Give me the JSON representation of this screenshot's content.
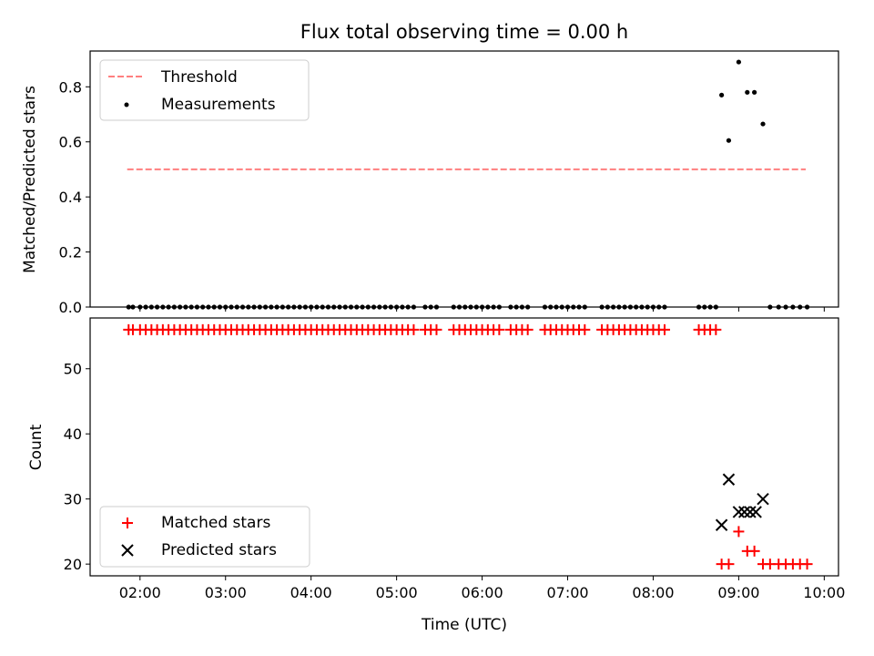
{
  "chart_data": [
    {
      "type": "scatter",
      "title": "Flux total observing time = 0.00 h",
      "xlabel": "",
      "ylabel": "Matched/Predicted stars",
      "xlim": [
        "01:25",
        "10:10"
      ],
      "ylim": [
        0,
        0.93
      ],
      "x_ticks": [
        "02:00",
        "03:00",
        "04:00",
        "05:00",
        "06:00",
        "07:00",
        "08:00",
        "09:00",
        "10:00"
      ],
      "y_ticks": [
        "0.0",
        "0.2",
        "0.4",
        "0.6",
        "0.8"
      ],
      "grid": false,
      "legend": "top-left",
      "series": [
        {
          "name": "Threshold",
          "style": "dashed-line",
          "color": "#ff7f7f",
          "x": [
            "01:51",
            "09:47"
          ],
          "y": [
            0.5,
            0.5
          ]
        },
        {
          "name": "Measurements",
          "style": "dot",
          "color": "#000000",
          "x": [
            "01:52",
            "01:55",
            "02:00",
            "02:04",
            "02:08",
            "02:12",
            "02:16",
            "02:20",
            "02:24",
            "02:28",
            "02:32",
            "02:36",
            "02:40",
            "02:44",
            "02:48",
            "02:52",
            "02:56",
            "03:00",
            "03:04",
            "03:08",
            "03:12",
            "03:16",
            "03:20",
            "03:24",
            "03:28",
            "03:32",
            "03:36",
            "03:40",
            "03:44",
            "03:48",
            "03:52",
            "03:56",
            "04:00",
            "04:04",
            "04:08",
            "04:12",
            "04:16",
            "04:20",
            "04:24",
            "04:28",
            "04:32",
            "04:36",
            "04:40",
            "04:44",
            "04:48",
            "04:52",
            "04:56",
            "05:00",
            "05:04",
            "05:08",
            "05:12",
            "05:20",
            "05:24",
            "05:28",
            "05:40",
            "05:44",
            "05:48",
            "05:52",
            "05:56",
            "06:00",
            "06:04",
            "06:08",
            "06:12",
            "06:20",
            "06:24",
            "06:28",
            "06:32",
            "06:44",
            "06:48",
            "06:52",
            "06:56",
            "07:00",
            "07:04",
            "07:08",
            "07:12",
            "07:24",
            "07:28",
            "07:32",
            "07:36",
            "07:40",
            "07:44",
            "07:48",
            "07:52",
            "07:56",
            "08:00",
            "08:04",
            "08:08",
            "08:32",
            "08:36",
            "08:40",
            "08:44",
            "08:48",
            "08:53",
            "09:00",
            "09:06",
            "09:11",
            "09:17",
            "09:22",
            "09:28",
            "09:33",
            "09:38",
            "09:43",
            "09:48"
          ],
          "y": [
            0,
            0,
            0,
            0,
            0,
            0,
            0,
            0,
            0,
            0,
            0,
            0,
            0,
            0,
            0,
            0,
            0,
            0,
            0,
            0,
            0,
            0,
            0,
            0,
            0,
            0,
            0,
            0,
            0,
            0,
            0,
            0,
            0,
            0,
            0,
            0,
            0,
            0,
            0,
            0,
            0,
            0,
            0,
            0,
            0,
            0,
            0,
            0,
            0,
            0,
            0,
            0,
            0,
            0,
            0,
            0,
            0,
            0,
            0,
            0,
            0,
            0,
            0,
            0,
            0,
            0,
            0,
            0,
            0,
            0,
            0,
            0,
            0,
            0,
            0,
            0,
            0,
            0,
            0,
            0,
            0,
            0,
            0,
            0,
            0,
            0,
            0,
            0,
            0,
            0,
            0,
            0.77,
            0.605,
            0.89,
            0.78,
            0.78,
            0.665,
            0,
            0,
            0,
            0,
            0,
            0
          ]
        }
      ]
    },
    {
      "type": "scatter",
      "title": "",
      "xlabel": "Time (UTC)",
      "ylabel": "Count",
      "xlim": [
        "01:25",
        "10:10"
      ],
      "ylim": [
        18.2,
        57.8
      ],
      "x_ticks": [
        "02:00",
        "03:00",
        "04:00",
        "05:00",
        "06:00",
        "07:00",
        "08:00",
        "09:00",
        "10:00"
      ],
      "y_ticks": [
        "20",
        "30",
        "40",
        "50"
      ],
      "grid": false,
      "legend": "bottom-left",
      "series": [
        {
          "name": "Matched stars",
          "style": "plus",
          "color": "#ff0000",
          "x": [
            "01:52",
            "01:55",
            "02:00",
            "02:04",
            "02:08",
            "02:12",
            "02:16",
            "02:20",
            "02:24",
            "02:28",
            "02:32",
            "02:36",
            "02:40",
            "02:44",
            "02:48",
            "02:52",
            "02:56",
            "03:00",
            "03:04",
            "03:08",
            "03:12",
            "03:16",
            "03:20",
            "03:24",
            "03:28",
            "03:32",
            "03:36",
            "03:40",
            "03:44",
            "03:48",
            "03:52",
            "03:56",
            "04:00",
            "04:04",
            "04:08",
            "04:12",
            "04:16",
            "04:20",
            "04:24",
            "04:28",
            "04:32",
            "04:36",
            "04:40",
            "04:44",
            "04:48",
            "04:52",
            "04:56",
            "05:00",
            "05:04",
            "05:08",
            "05:12",
            "05:20",
            "05:24",
            "05:28",
            "05:40",
            "05:44",
            "05:48",
            "05:52",
            "05:56",
            "06:00",
            "06:04",
            "06:08",
            "06:12",
            "06:20",
            "06:24",
            "06:28",
            "06:32",
            "06:44",
            "06:48",
            "06:52",
            "06:56",
            "07:00",
            "07:04",
            "07:08",
            "07:12",
            "07:24",
            "07:28",
            "07:32",
            "07:36",
            "07:40",
            "07:44",
            "07:48",
            "07:52",
            "07:56",
            "08:00",
            "08:04",
            "08:08",
            "08:32",
            "08:36",
            "08:40",
            "08:44",
            "08:48",
            "08:53",
            "09:00",
            "09:06",
            "09:11",
            "09:17",
            "09:22",
            "09:28",
            "09:33",
            "09:38",
            "09:43",
            "09:48"
          ],
          "y": [
            56,
            56,
            56,
            56,
            56,
            56,
            56,
            56,
            56,
            56,
            56,
            56,
            56,
            56,
            56,
            56,
            56,
            56,
            56,
            56,
            56,
            56,
            56,
            56,
            56,
            56,
            56,
            56,
            56,
            56,
            56,
            56,
            56,
            56,
            56,
            56,
            56,
            56,
            56,
            56,
            56,
            56,
            56,
            56,
            56,
            56,
            56,
            56,
            56,
            56,
            56,
            56,
            56,
            56,
            56,
            56,
            56,
            56,
            56,
            56,
            56,
            56,
            56,
            56,
            56,
            56,
            56,
            56,
            56,
            56,
            56,
            56,
            56,
            56,
            56,
            56,
            56,
            56,
            56,
            56,
            56,
            56,
            56,
            56,
            56,
            56,
            56,
            56,
            56,
            56,
            56,
            20,
            20,
            25,
            22,
            22,
            20,
            20,
            20,
            20,
            20,
            20,
            20
          ]
        },
        {
          "name": "Predicted stars",
          "style": "x",
          "color": "#000000",
          "x": [
            "08:48",
            "08:53",
            "09:00",
            "09:04",
            "09:08",
            "09:12",
            "09:17"
          ],
          "y": [
            26,
            33,
            28,
            28,
            28,
            28,
            30
          ]
        }
      ]
    }
  ]
}
